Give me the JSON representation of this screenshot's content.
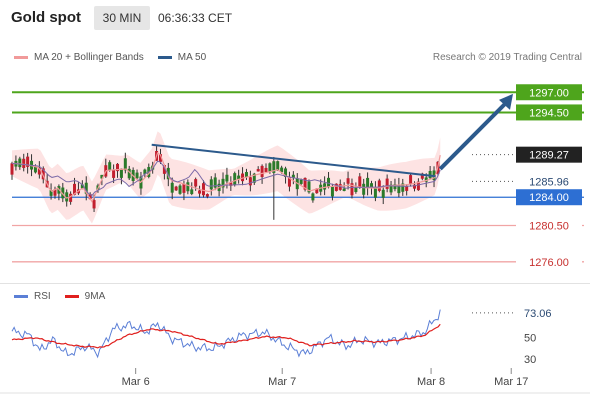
{
  "header": {
    "symbol": "Gold spot",
    "timeframe": "30 MIN",
    "time": "06:36:33 CET"
  },
  "legend_main": [
    {
      "label": "MA 20 + Bollinger Bands",
      "color": "#f19a9a"
    },
    {
      "label": "MA 50",
      "color": "#2c5a8c"
    }
  ],
  "legend_rsi": [
    {
      "label": "RSI",
      "color": "#5b7fd6"
    },
    {
      "label": "9MA",
      "color": "#e0201e"
    }
  ],
  "credit": "Research © 2019 Trading Central",
  "colors": {
    "resistance": "#4ea51c",
    "support_line": "#2d6fd3",
    "minor_support": "#f1a5a5",
    "trend": "#2c5a8c",
    "candle_up": "#2a7a2a",
    "candle_down": "#c21e2e"
  },
  "chart_data": [
    {
      "type": "candlestick",
      "x_labels": [
        "Mar 6",
        "Mar 7",
        "Mar 8",
        "Mar 17"
      ],
      "ylim": [
        1273.5,
        1300.5
      ],
      "levels": [
        {
          "value": 1297.0,
          "label": "1297.00",
          "kind": "resistance"
        },
        {
          "value": 1294.5,
          "label": "1294.50",
          "kind": "resistance"
        },
        {
          "value": 1289.27,
          "label": "1289.27",
          "kind": "last"
        },
        {
          "value": 1285.96,
          "label": "1285.96",
          "kind": "pivot"
        },
        {
          "value": 1284.0,
          "label": "1284.00",
          "kind": "support"
        },
        {
          "value": 1280.5,
          "label": "1280.50",
          "kind": "minor_support"
        },
        {
          "value": 1276.0,
          "label": "1276.00",
          "kind": "minor_support"
        }
      ],
      "trendline": [
        [
          0.305,
          1290.5
        ],
        [
          0.925,
          1286.6
        ]
      ],
      "forecast": [
        [
          0.935,
          1287.5
        ],
        [
          1.0,
          1296.8
        ]
      ],
      "segments": [
        [
          0,
          1288.2
        ],
        [
          0.06,
          1287.5
        ],
        [
          0.085,
          1284.7
        ],
        [
          0.1,
          1285.3
        ],
        [
          0.12,
          1284.0
        ],
        [
          0.155,
          1285.2
        ],
        [
          0.175,
          1283.3
        ],
        [
          0.205,
          1287.1
        ],
        [
          0.25,
          1287.6
        ],
        [
          0.28,
          1286.0
        ],
        [
          0.305,
          1287.4
        ],
        [
          0.32,
          1289.8
        ],
        [
          0.345,
          1285.9
        ],
        [
          0.4,
          1285.2
        ],
        [
          0.43,
          1284.9
        ],
        [
          0.47,
          1285.7
        ],
        [
          0.52,
          1286.4
        ],
        [
          0.58,
          1287.6
        ],
        [
          0.62,
          1285.9
        ],
        [
          0.65,
          1284.6
        ],
        [
          0.7,
          1285.3
        ],
        [
          0.74,
          1285.7
        ],
        [
          0.77,
          1285.3
        ],
        [
          0.8,
          1285.0
        ],
        [
          0.86,
          1285.5
        ],
        [
          0.9,
          1286.2
        ],
        [
          0.925,
          1286.6
        ],
        [
          0.935,
          1289.27
        ]
      ]
    },
    {
      "type": "line",
      "title": "",
      "ylim": [
        20,
        85
      ],
      "ticks": [
        73.06,
        50,
        30
      ],
      "tick_labels": [
        "73.06",
        "50",
        "30"
      ],
      "series": [
        {
          "name": "RSI",
          "points": [
            [
              0,
              56
            ],
            [
              0.04,
              52
            ],
            [
              0.06,
              38
            ],
            [
              0.09,
              48
            ],
            [
              0.12,
              34
            ],
            [
              0.16,
              42
            ],
            [
              0.19,
              36
            ],
            [
              0.22,
              58
            ],
            [
              0.26,
              62
            ],
            [
              0.29,
              55
            ],
            [
              0.32,
              63
            ],
            [
              0.345,
              50
            ],
            [
              0.4,
              41
            ],
            [
              0.44,
              40
            ],
            [
              0.5,
              52
            ],
            [
              0.55,
              55
            ],
            [
              0.6,
              42
            ],
            [
              0.64,
              35
            ],
            [
              0.69,
              50
            ],
            [
              0.73,
              42
            ],
            [
              0.76,
              48
            ],
            [
              0.8,
              45
            ],
            [
              0.86,
              50
            ],
            [
              0.9,
              55
            ],
            [
              0.935,
              73.06
            ]
          ]
        },
        {
          "name": "9MA",
          "points": [
            [
              0,
              48
            ],
            [
              0.05,
              50
            ],
            [
              0.1,
              45
            ],
            [
              0.15,
              42
            ],
            [
              0.2,
              41
            ],
            [
              0.25,
              52
            ],
            [
              0.3,
              58
            ],
            [
              0.35,
              56
            ],
            [
              0.4,
              50
            ],
            [
              0.45,
              44
            ],
            [
              0.5,
              47
            ],
            [
              0.55,
              51
            ],
            [
              0.6,
              50
            ],
            [
              0.65,
              43
            ],
            [
              0.7,
              45
            ],
            [
              0.75,
              47
            ],
            [
              0.8,
              46
            ],
            [
              0.85,
              48
            ],
            [
              0.9,
              52
            ],
            [
              0.935,
              62
            ]
          ]
        }
      ]
    }
  ]
}
